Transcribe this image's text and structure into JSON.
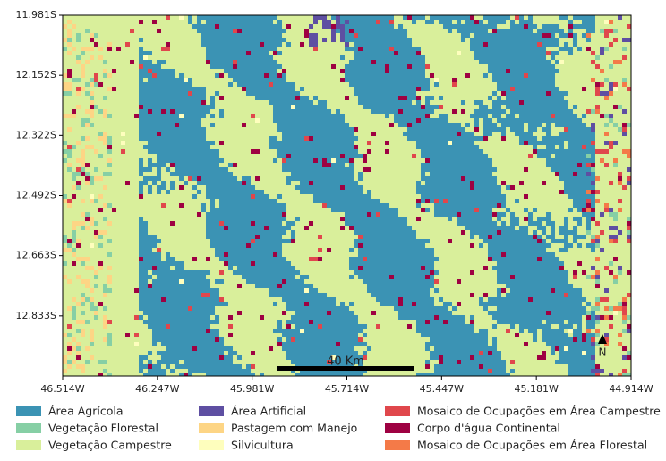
{
  "map": {
    "xticks": [
      "46.514W",
      "46.247W",
      "45.981W",
      "45.714W",
      "45.447W",
      "45.181W",
      "44.914W"
    ],
    "yticks": [
      "11.981S",
      "12.152S",
      "12.322S",
      "12.492S",
      "12.663S",
      "12.833S"
    ],
    "scale_bar": "40 Km",
    "north": "N",
    "legend": [
      {
        "name": "Área Agrícola",
        "color": "#3b93b4"
      },
      {
        "name": "Vegetação Florestal",
        "color": "#86cfa5"
      },
      {
        "name": "Vegetação Campestre",
        "color": "#d9ef9b"
      },
      {
        "name": "Área Artificial",
        "color": "#5e4fa2"
      },
      {
        "name": "Pastagem com Manejo",
        "color": "#fdd585"
      },
      {
        "name": "Silvicultura",
        "color": "#fefebd"
      },
      {
        "name": "Mosaico de Ocupações em Área Campestre",
        "color": "#e0474c"
      },
      {
        "name": "Corpo d'água Continental",
        "color": "#9e0142"
      },
      {
        "name": "Mosaico de Ocupações em Área Florestal",
        "color": "#f47a48"
      }
    ]
  }
}
